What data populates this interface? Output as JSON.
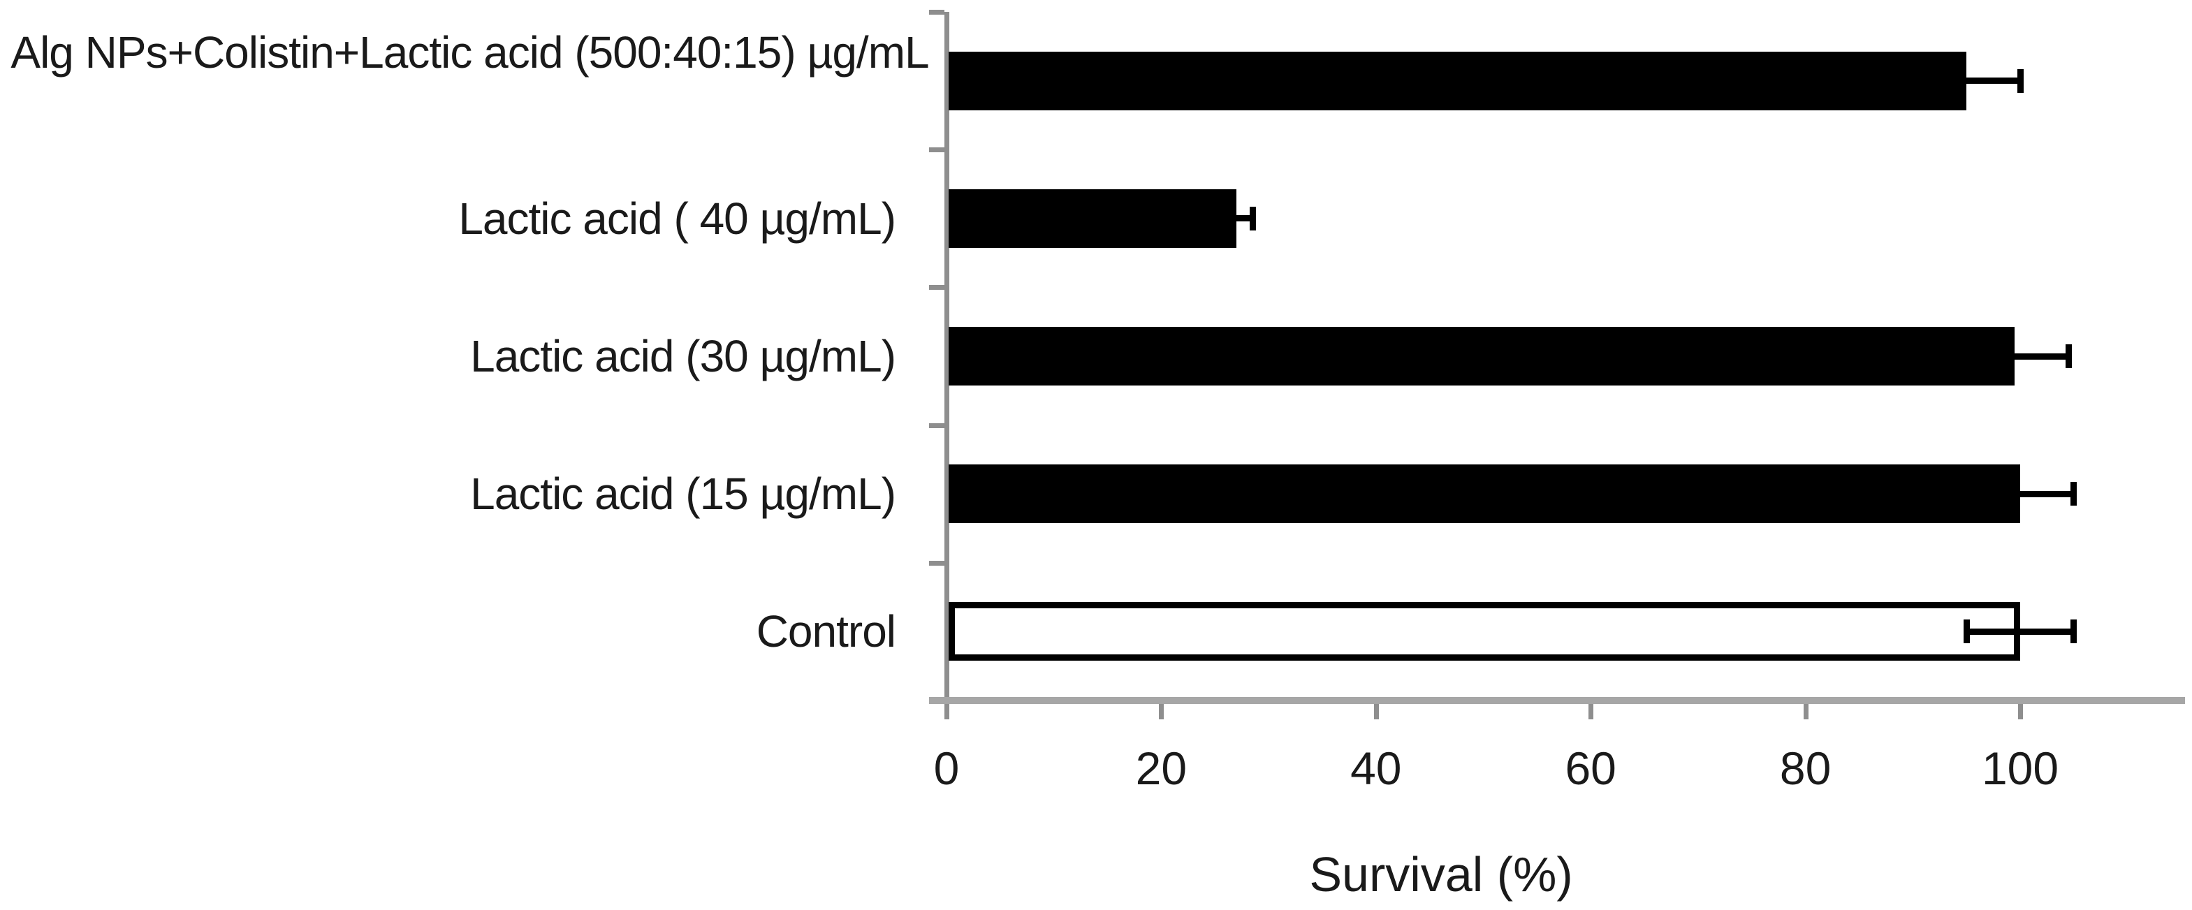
{
  "chart_data": {
    "type": "bar",
    "orientation": "horizontal",
    "categories": [
      "Alg NPs+Colistin+Lactic acid (500:40:15) µg/mL",
      "Lactic acid ( 40 µg/mL)",
      "Lactic acid (30 µg/mL)",
      "Lactic acid (15 µg/mL)",
      "Control"
    ],
    "values": [
      95,
      27,
      99.5,
      100,
      100
    ],
    "errors_plus": [
      5,
      1.5,
      5,
      5,
      5
    ],
    "errors_minus": [
      0,
      0,
      0,
      0,
      5
    ],
    "bar_fills": [
      "black",
      "black",
      "black",
      "black",
      "white"
    ],
    "title": "",
    "xlabel": "Survival (%)",
    "ylabel": "",
    "x_ticks": [
      0,
      20,
      40,
      60,
      80,
      100
    ],
    "xlim": [
      0,
      114
    ],
    "grid": false,
    "legend": "none",
    "colors": {
      "bar_fill": "#000000",
      "control_bar_fill": "#ffffff",
      "bar_outline": "#000000",
      "error_bar": "#000000",
      "y_axis_line": "#8e8e8e",
      "x_axis_line": "#a6a6a6",
      "text": "#1a1a1a",
      "background": "#ffffff"
    }
  }
}
